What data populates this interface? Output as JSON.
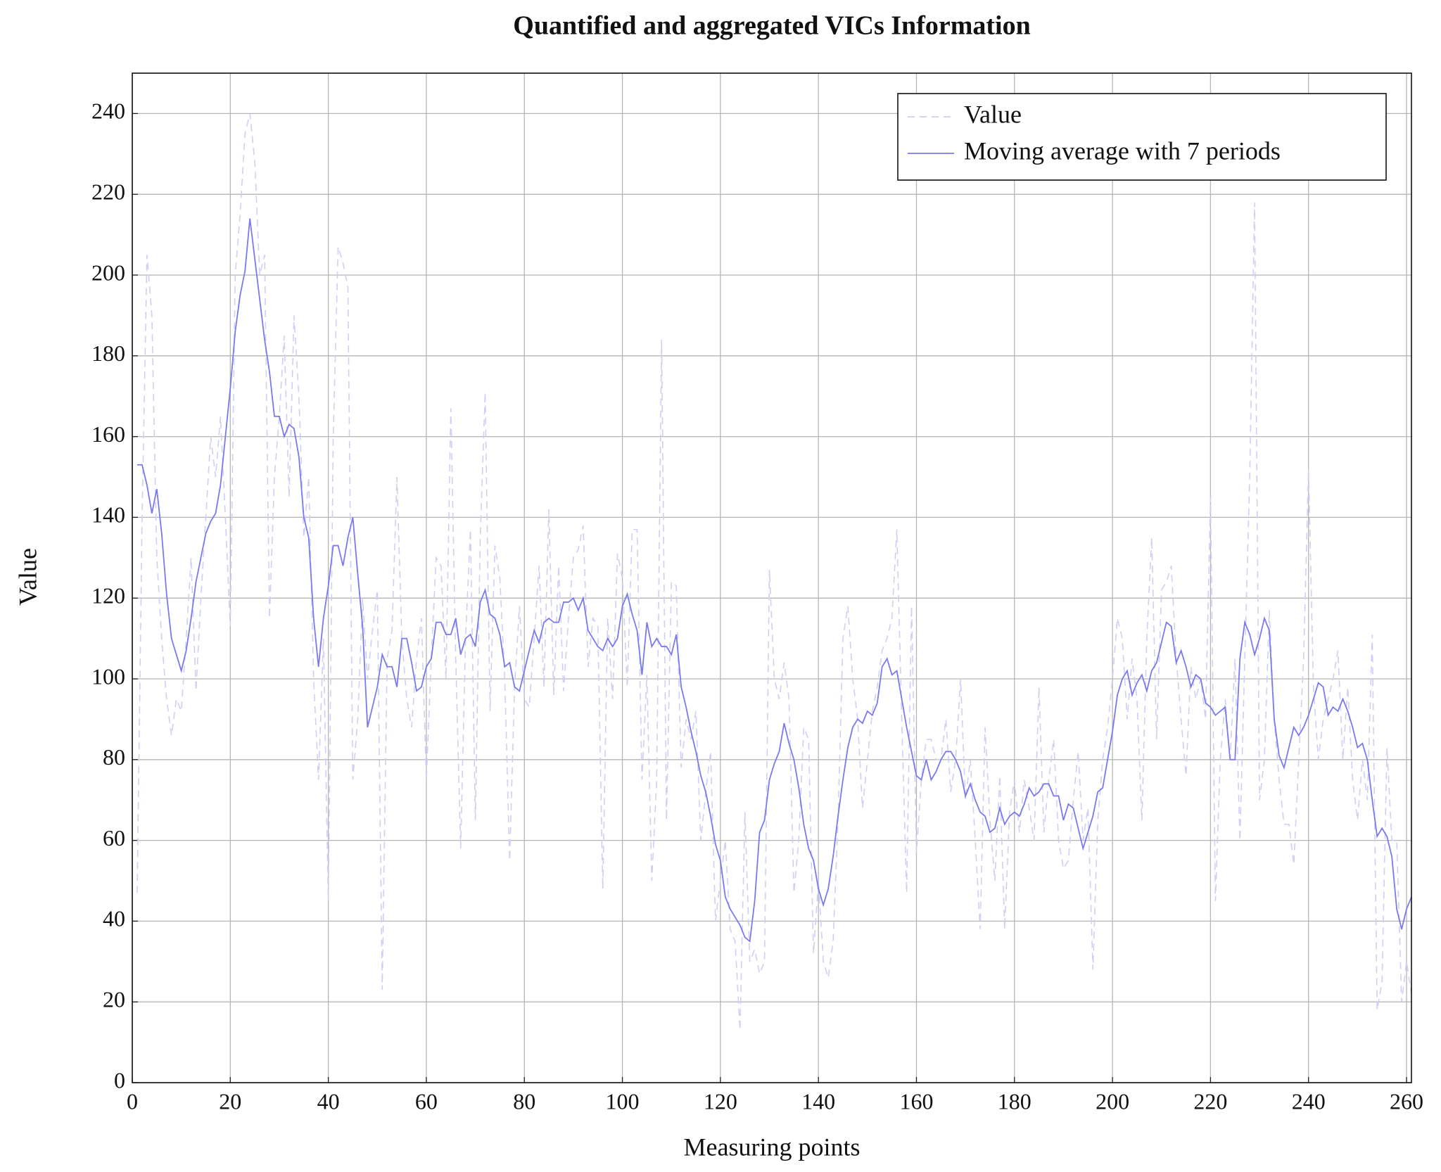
{
  "chart_data": {
    "type": "line",
    "title": "Quantified and aggregated VICs Information",
    "x_label": "Measuring points",
    "y_label": "Value",
    "xlim": [
      0,
      261
    ],
    "xticks": [
      0,
      20,
      40,
      60,
      80,
      100,
      120,
      140,
      160,
      180,
      200,
      220,
      240,
      260
    ],
    "ylim": [
      0,
      250
    ],
    "yticks": [
      0,
      20,
      40,
      60,
      80,
      100,
      120,
      140,
      160,
      180,
      200,
      220,
      240
    ],
    "grid": true,
    "legend": "top-right",
    "x": [
      1,
      2,
      3,
      4,
      5,
      6,
      7,
      8,
      9,
      10,
      11,
      12,
      13,
      14,
      15,
      16,
      17,
      18,
      19,
      20,
      21,
      22,
      23,
      24,
      25,
      26,
      27,
      28,
      29,
      30,
      31,
      32,
      33,
      34,
      35,
      36,
      37,
      38,
      39,
      40,
      41,
      42,
      43,
      44,
      45,
      46,
      47,
      48,
      49,
      50,
      51,
      52,
      53,
      54,
      55,
      56,
      57,
      58,
      59,
      60,
      61,
      62,
      63,
      64,
      65,
      66,
      67,
      68,
      69,
      70,
      71,
      72,
      73,
      74,
      75,
      76,
      77,
      78,
      79,
      80,
      81,
      82,
      83,
      84,
      85,
      86,
      87,
      88,
      89,
      90,
      91,
      92,
      93,
      94,
      95,
      96,
      97,
      98,
      99,
      100,
      101,
      102,
      103,
      104,
      105,
      106,
      107,
      108,
      109,
      110,
      111,
      112,
      113,
      114,
      115,
      116,
      117,
      118,
      119,
      120,
      121,
      122,
      123,
      124,
      125,
      126,
      127,
      128,
      129,
      130,
      131,
      132,
      133,
      134,
      135,
      136,
      137,
      138,
      139,
      140,
      141,
      142,
      143,
      144,
      145,
      146,
      147,
      148,
      149,
      150,
      151,
      152,
      153,
      154,
      155,
      156,
      157,
      158,
      159,
      160,
      161,
      162,
      163,
      164,
      165,
      166,
      167,
      168,
      169,
      170,
      171,
      172,
      173,
      174,
      175,
      176,
      177,
      178,
      179,
      180,
      181,
      182,
      183,
      184,
      185,
      186,
      187,
      188,
      189,
      190,
      191,
      192,
      193,
      194,
      195,
      196,
      197,
      198,
      199,
      200,
      201,
      202,
      203,
      204,
      205,
      206,
      207,
      208,
      209,
      210,
      211,
      212,
      213,
      214,
      215,
      216,
      217,
      218,
      219,
      220,
      221,
      222,
      223,
      224,
      225,
      226,
      227,
      228,
      229,
      230,
      231,
      232,
      233,
      234,
      235,
      236,
      237,
      238,
      239,
      240,
      241,
      242,
      243,
      244,
      245,
      246,
      247,
      248,
      249,
      250,
      251,
      252,
      253,
      254,
      255,
      256,
      257,
      258,
      259,
      260,
      261
    ],
    "series": [
      {
        "name": "Value",
        "color": "#cfcff5",
        "style": "dashed",
        "values": [
          47,
          140,
          205,
          190,
          130,
          110,
          95,
          86,
          95,
          92,
          110,
          130,
          97,
          120,
          140,
          160,
          150,
          165,
          140,
          113,
          200,
          215,
          235,
          240,
          228,
          200,
          205,
          115,
          150,
          165,
          185,
          145,
          190,
          170,
          135,
          150,
          100,
          75,
          110,
          45,
          160,
          207,
          203,
          197,
          75,
          90,
          120,
          100,
          112,
          122,
          23,
          105,
          112,
          150,
          110,
          95,
          88,
          105,
          115,
          75,
          105,
          130,
          128,
          100,
          167,
          105,
          58,
          110,
          137,
          65,
          135,
          171,
          92,
          133,
          125,
          100,
          55,
          98,
          118,
          95,
          93,
          110,
          128,
          98,
          142,
          96,
          128,
          97,
          115,
          130,
          132,
          138,
          103,
          115,
          113,
          48,
          115,
          95,
          131,
          125,
          98,
          137,
          137,
          75,
          101,
          50,
          75,
          184,
          65,
          124,
          123,
          78,
          90,
          85,
          92,
          60,
          72,
          82,
          40,
          50,
          60,
          38,
          35,
          13,
          67,
          30,
          33,
          27,
          30,
          127,
          100,
          95,
          104,
          95,
          47,
          60,
          88,
          85,
          32,
          50,
          30,
          26,
          35,
          65,
          110,
          118,
          100,
          90,
          68,
          80,
          92,
          98,
          107,
          110,
          115,
          137,
          90,
          47,
          118,
          57,
          75,
          85,
          85,
          80,
          80,
          90,
          72,
          80,
          100,
          70,
          80,
          60,
          38,
          88,
          65,
          50,
          76,
          38,
          67,
          75,
          62,
          75,
          68,
          60,
          98,
          62,
          75,
          85,
          60,
          53,
          55,
          70,
          82,
          60,
          68,
          28,
          65,
          80,
          88,
          100,
          115,
          110,
          90,
          105,
          95,
          65,
          110,
          135,
          85,
          122,
          124,
          128,
          105,
          90,
          76,
          103,
          95,
          100,
          90,
          145,
          45,
          80,
          95,
          80,
          105,
          60,
          105,
          150,
          218,
          70,
          80,
          117,
          90,
          75,
          64,
          64,
          54,
          80,
          105,
          152,
          98,
          80,
          90,
          95,
          100,
          107,
          80,
          98,
          75,
          65,
          80,
          70,
          111,
          18,
          25,
          83,
          60,
          60,
          20,
          30,
          22
        ]
      },
      {
        "name": "Moving average with 7 periods",
        "color": "#7a7aee",
        "style": "solid",
        "values": [
          153,
          153,
          148,
          141,
          147,
          136,
          121,
          110,
          106,
          102,
          107,
          115,
          124,
          130,
          136,
          139,
          141,
          148,
          160,
          172,
          186,
          195,
          201,
          214,
          204,
          194,
          184,
          176,
          165,
          165,
          160,
          163,
          162,
          155,
          140,
          135,
          115,
          103,
          115,
          123,
          133,
          133,
          128,
          135,
          140,
          126,
          113,
          88,
          93,
          98,
          106,
          103,
          103,
          98,
          110,
          110,
          104,
          97,
          98,
          103,
          105,
          114,
          114,
          111,
          111,
          115,
          106,
          110,
          111,
          108,
          119,
          122,
          116,
          115,
          111,
          103,
          104,
          98,
          97,
          102,
          107,
          112,
          109,
          114,
          115,
          114,
          114,
          119,
          119,
          120,
          117,
          120,
          112,
          110,
          108,
          107,
          110,
          108,
          110,
          118,
          121,
          116,
          112,
          101,
          114,
          108,
          110,
          108,
          108,
          106,
          111,
          98,
          93,
          87,
          82,
          76,
          72,
          66,
          59,
          55,
          46,
          43,
          41,
          39,
          36,
          35,
          45,
          62,
          65,
          75,
          79,
          82,
          89,
          84,
          80,
          73,
          64,
          58,
          55,
          48,
          44,
          48,
          56,
          66,
          75,
          83,
          88,
          90,
          89,
          92,
          91,
          94,
          103,
          105,
          101,
          102,
          95,
          88,
          82,
          76,
          75,
          80,
          75,
          77,
          80,
          82,
          82,
          80,
          77,
          71,
          74,
          70,
          67,
          66,
          62,
          63,
          68,
          64,
          66,
          67,
          66,
          69,
          73,
          71,
          72,
          74,
          74,
          71,
          71,
          65,
          69,
          68,
          63,
          58,
          62,
          66,
          72,
          73,
          80,
          87,
          96,
          100,
          102,
          96,
          99,
          101,
          97,
          102,
          104,
          109,
          114,
          113,
          104,
          107,
          103,
          98,
          101,
          100,
          94,
          93,
          91,
          92,
          93,
          80,
          80,
          105,
          114,
          111,
          106,
          110,
          115,
          112,
          90,
          81,
          78,
          83,
          88,
          86,
          88,
          91,
          95,
          99,
          98,
          91,
          93,
          92,
          95,
          92,
          88,
          83,
          84,
          80,
          70,
          61,
          63,
          61,
          56,
          43,
          38,
          43,
          46
        ]
      }
    ]
  }
}
